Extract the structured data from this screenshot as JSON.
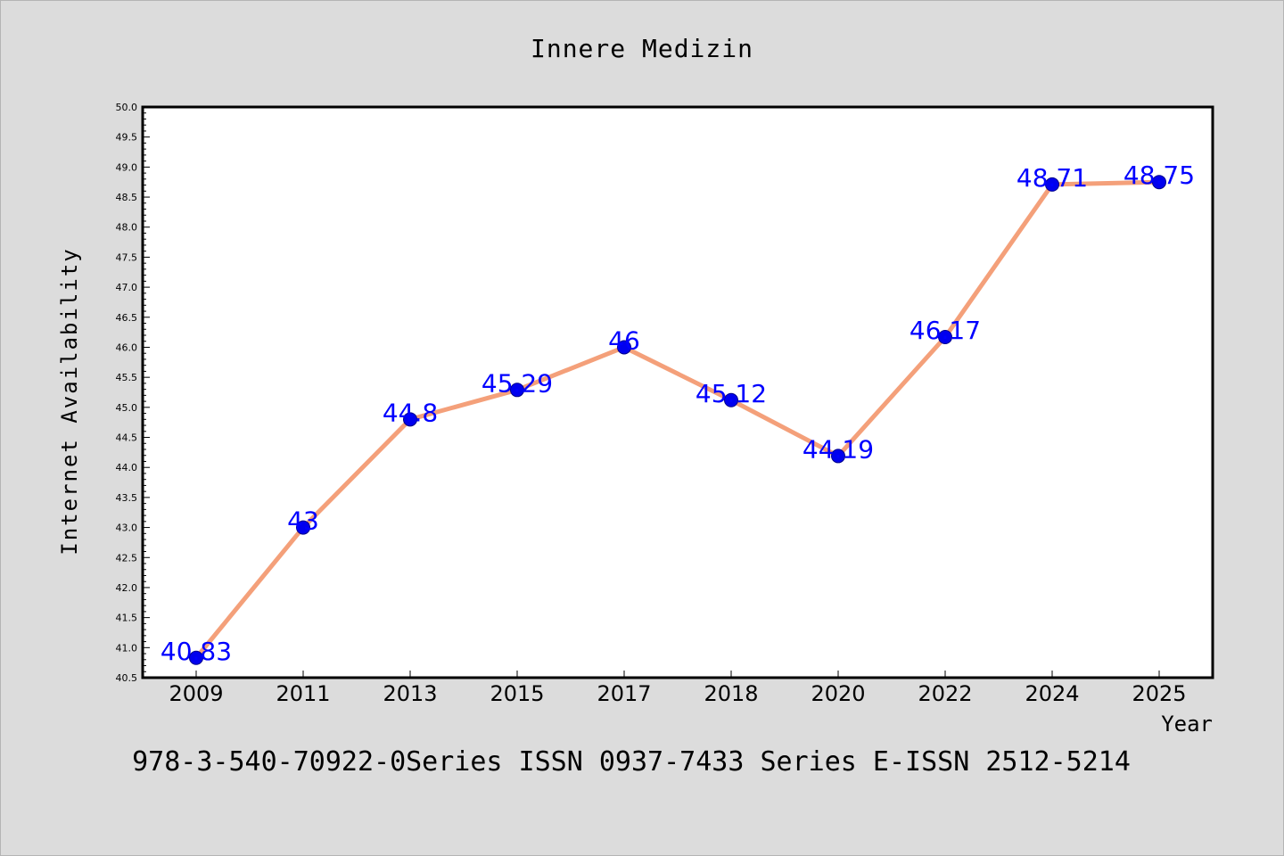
{
  "chart_data": {
    "type": "line",
    "title": "Innere Medizin",
    "xlabel": "Year",
    "ylabel": "Internet Availability",
    "footer": "978-3-540-70922-0Series ISSN 0937-7433 Series E-ISSN 2512-5214",
    "categories": [
      "2009",
      "2011",
      "2013",
      "2015",
      "2017",
      "2018",
      "2020",
      "2022",
      "2024",
      "2025"
    ],
    "values": [
      40.83,
      43,
      44.8,
      45.29,
      46,
      45.12,
      44.19,
      46.17,
      48.71,
      48.75
    ],
    "data_labels": [
      "40.83",
      "43",
      "44.8",
      "45.29",
      "46",
      "45.12",
      "44.19",
      "46.17",
      "48.71",
      "48.75"
    ],
    "ylim": [
      40.5,
      50.0
    ],
    "yticks": [
      "40.5",
      "41.0",
      "41.5",
      "42.0",
      "42.5",
      "43.0",
      "43.5",
      "44.0",
      "44.5",
      "45.0",
      "45.5",
      "46.0",
      "46.5",
      "47.0",
      "47.5",
      "48.0",
      "48.5",
      "49.0",
      "49.5",
      "50.0"
    ],
    "grid": false,
    "colors": {
      "background": "#dcdcdc",
      "plot_background": "#ffffff",
      "line": "#f4a07a",
      "marker": "#0000ee",
      "label": "#0000ff",
      "text": "#000000"
    }
  }
}
